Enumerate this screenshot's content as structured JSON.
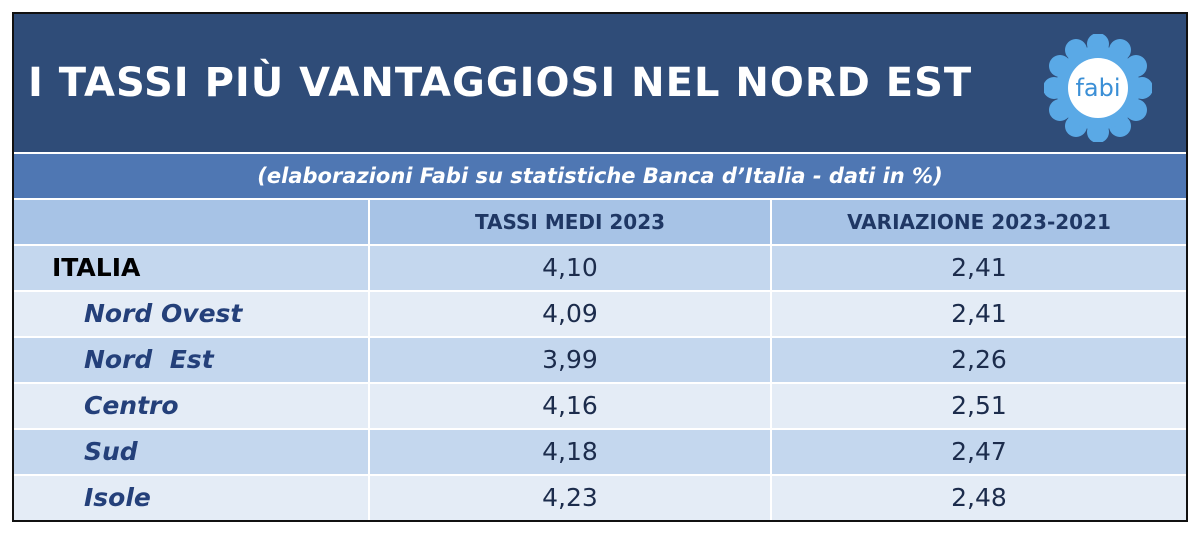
{
  "header": {
    "title": "I TASSI PIÙ VANTAGGIOSI NEL NORD EST",
    "logo": "fabi"
  },
  "subtitle": "(elaborazioni Fabi su statistiche Banca d’Italia - dati in %)",
  "table": {
    "columns": [
      "",
      "TASSI MEDI 2023",
      "VARIAZIONE 2023-2021"
    ],
    "rows": [
      [
        "ITALIA",
        "4,10",
        "2,41"
      ],
      [
        "Nord Ovest",
        "4,09",
        "2,41"
      ],
      [
        "Nord  Est",
        "3,99",
        "2,26"
      ],
      [
        "Centro",
        "4,16",
        "2,51"
      ],
      [
        "Sud",
        "4,18",
        "2,47"
      ],
      [
        "Isole",
        "4,23",
        "2,48"
      ]
    ]
  }
}
